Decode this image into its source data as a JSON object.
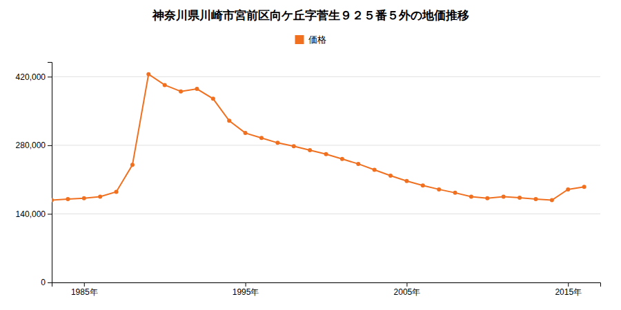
{
  "chart_data": {
    "type": "line",
    "title": "神奈川県川崎市宮前区向ケ丘字菅生９２５番５外の地価推移",
    "x": [
      1983,
      1984,
      1985,
      1986,
      1987,
      1988,
      1989,
      1990,
      1991,
      1992,
      1993,
      1994,
      1995,
      1996,
      1997,
      1998,
      1999,
      2000,
      2001,
      2002,
      2003,
      2004,
      2005,
      2006,
      2007,
      2008,
      2009,
      2010,
      2011,
      2012,
      2013,
      2014,
      2015,
      2016
    ],
    "series": [
      {
        "name": "価格",
        "color": "#F07020",
        "marker": "circle",
        "values": [
          168000,
          170000,
          172000,
          175000,
          185000,
          240000,
          425000,
          403000,
          390000,
          395000,
          375000,
          330000,
          305000,
          295000,
          285000,
          278000,
          270000,
          262000,
          252000,
          242000,
          230000,
          218000,
          207000,
          198000,
          190000,
          183000,
          175000,
          172000,
          175000,
          173000,
          170000,
          168000,
          190000,
          195000
        ]
      }
    ],
    "xlim": [
      1983,
      2017
    ],
    "xticks": [
      {
        "value": 1985,
        "label": "1985年"
      },
      {
        "value": 1995,
        "label": "1995年"
      },
      {
        "value": 2005,
        "label": "2005年"
      },
      {
        "value": 2015,
        "label": "2015年"
      }
    ],
    "ylim": [
      0,
      450000
    ],
    "yticks": [
      0,
      {
        "value": 140000,
        "label": "140,000"
      },
      {
        "value": 280000,
        "label": "280,000"
      },
      {
        "value": 420000,
        "label": "420,000"
      }
    ],
    "grid": true,
    "legend": "top"
  }
}
